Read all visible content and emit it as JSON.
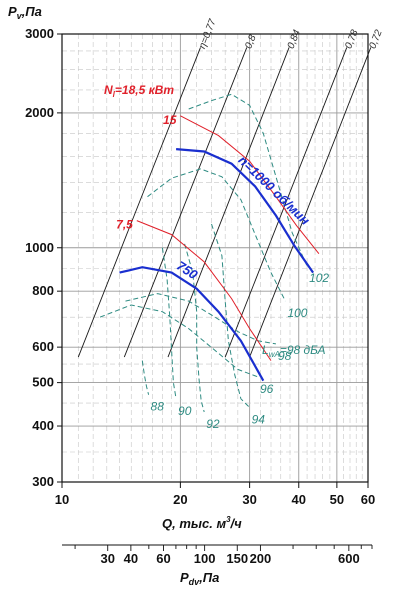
{
  "chart_data": {
    "type": "line",
    "title": "",
    "xlabel": "Q, тыс. м³/ч",
    "xlabel_main": "Q, тыс. м",
    "xlabel_sup": "3",
    "xlabel_tail": "/ч",
    "ylabel": "Pv,Па",
    "ylabel_main": "P",
    "ylabel_sub": "v",
    "ylabel_tail": ",Па",
    "x2label": "Pdv,Па",
    "x2label_main": "P",
    "x2label_sub": "dv",
    "x2label_tail": ",Па",
    "x_scale": "log",
    "y_scale": "log",
    "xlim": [
      10,
      60
    ],
    "ylim": [
      300,
      3000
    ],
    "grid": true,
    "x_ticks": [
      10,
      20,
      30,
      40,
      50,
      60
    ],
    "y_ticks": [
      300,
      400,
      500,
      600,
      800,
      1000,
      2000,
      3000
    ],
    "x2_ticks": [
      30,
      40,
      60,
      100,
      150,
      200,
      600
    ],
    "efficiency_lines": [
      {
        "label": "η=0,77",
        "points": [
          [
            11.0,
            570
          ],
          [
            22.5,
            2800
          ]
        ]
      },
      {
        "label": "0,8",
        "points": [
          [
            14.4,
            570
          ],
          [
            29.5,
            2800
          ]
        ]
      },
      {
        "label": "0,84",
        "points": [
          [
            18.6,
            570
          ],
          [
            37.8,
            2800
          ]
        ]
      },
      {
        "label": "0,78",
        "points": [
          [
            26.0,
            570
          ],
          [
            53.0,
            2800
          ]
        ]
      },
      {
        "label": "0,72",
        "points": [
          [
            30.0,
            570
          ],
          [
            61.0,
            2800
          ]
        ]
      }
    ],
    "speed_curves": [
      {
        "label": "n=1000 об/мин",
        "points": [
          [
            19.5,
            1660
          ],
          [
            23.0,
            1640
          ],
          [
            27.0,
            1540
          ],
          [
            31.0,
            1370
          ],
          [
            35.0,
            1180
          ],
          [
            39.0,
            1010
          ],
          [
            43.5,
            880
          ]
        ]
      },
      {
        "label": "750",
        "points": [
          [
            14.0,
            880
          ],
          [
            16.0,
            905
          ],
          [
            19.0,
            880
          ],
          [
            22.0,
            810
          ],
          [
            25.0,
            720
          ],
          [
            28.5,
            620
          ],
          [
            32.5,
            505
          ]
        ]
      }
    ],
    "power_curves": [
      {
        "label": "15",
        "points": [
          [
            20.0,
            1970
          ],
          [
            25.0,
            1780
          ],
          [
            30.0,
            1560
          ],
          [
            35.0,
            1300
          ],
          [
            39.5,
            1120
          ],
          [
            45.0,
            970
          ]
        ]
      },
      {
        "label": "7,5",
        "points": [
          [
            15.5,
            1150
          ],
          [
            19.0,
            1070
          ],
          [
            23.0,
            930
          ],
          [
            27.0,
            770
          ],
          [
            30.0,
            660
          ],
          [
            34.0,
            560
          ]
        ]
      }
    ],
    "power_unit_label": "N",
    "power_unit_sub": "l",
    "power_unit_tail": "=18,5 кВт",
    "noise_curves": [
      {
        "label": "102",
        "points": [
          [
            21.0,
            2040
          ],
          [
            24.0,
            2130
          ],
          [
            27.0,
            2200
          ],
          [
            30.0,
            2080
          ],
          [
            32.5,
            1800
          ],
          [
            35.5,
            1380
          ],
          [
            38.5,
            1080
          ],
          [
            42.0,
            910
          ]
        ]
      },
      {
        "label": "100",
        "points": [
          [
            16.5,
            1300
          ],
          [
            19.0,
            1430
          ],
          [
            22.5,
            1500
          ],
          [
            25.5,
            1440
          ],
          [
            28.5,
            1280
          ],
          [
            31.0,
            1070
          ],
          [
            34.0,
            880
          ],
          [
            37.0,
            760
          ]
        ]
      },
      {
        "label": "98",
        "points": [
          [
            14.5,
            760
          ],
          [
            17.5,
            790
          ],
          [
            21.0,
            760
          ],
          [
            24.5,
            700
          ],
          [
            28.0,
            650
          ],
          [
            31.5,
            620
          ],
          [
            35.0,
            610
          ]
        ]
      },
      {
        "label": "96",
        "points": [
          [
            12.5,
            700
          ],
          [
            15.0,
            745
          ],
          [
            18.0,
            720
          ],
          [
            21.0,
            660
          ],
          [
            24.5,
            590
          ],
          [
            28.0,
            535
          ],
          [
            31.5,
            515
          ]
        ]
      },
      {
        "label": "94",
        "points": [
          [
            24.0,
            1130
          ],
          [
            25.5,
            960
          ],
          [
            26.0,
            760
          ],
          [
            26.5,
            620
          ],
          [
            27.5,
            520
          ],
          [
            28.5,
            460
          ],
          [
            30.0,
            440
          ]
        ]
      },
      {
        "label": "92",
        "points": [
          [
            20.5,
            1020
          ],
          [
            21.5,
            880
          ],
          [
            22.0,
            720
          ],
          [
            22.0,
            600
          ],
          [
            22.3,
            510
          ],
          [
            22.6,
            455
          ],
          [
            23.0,
            430
          ]
        ]
      },
      {
        "label": "90",
        "points": [
          [
            18.0,
            1000
          ],
          [
            18.5,
            850
          ],
          [
            18.8,
            700
          ],
          [
            19.0,
            590
          ],
          [
            19.2,
            500
          ],
          [
            19.5,
            460
          ]
        ]
      },
      {
        "label": "88",
        "points": [
          [
            16.0,
            560
          ],
          [
            16.2,
            520
          ],
          [
            16.4,
            490
          ],
          [
            16.6,
            470
          ]
        ]
      }
    ],
    "noise_unit_label": "L",
    "noise_unit_sub": "wA",
    "noise_unit_tail": "=98 дБА"
  }
}
